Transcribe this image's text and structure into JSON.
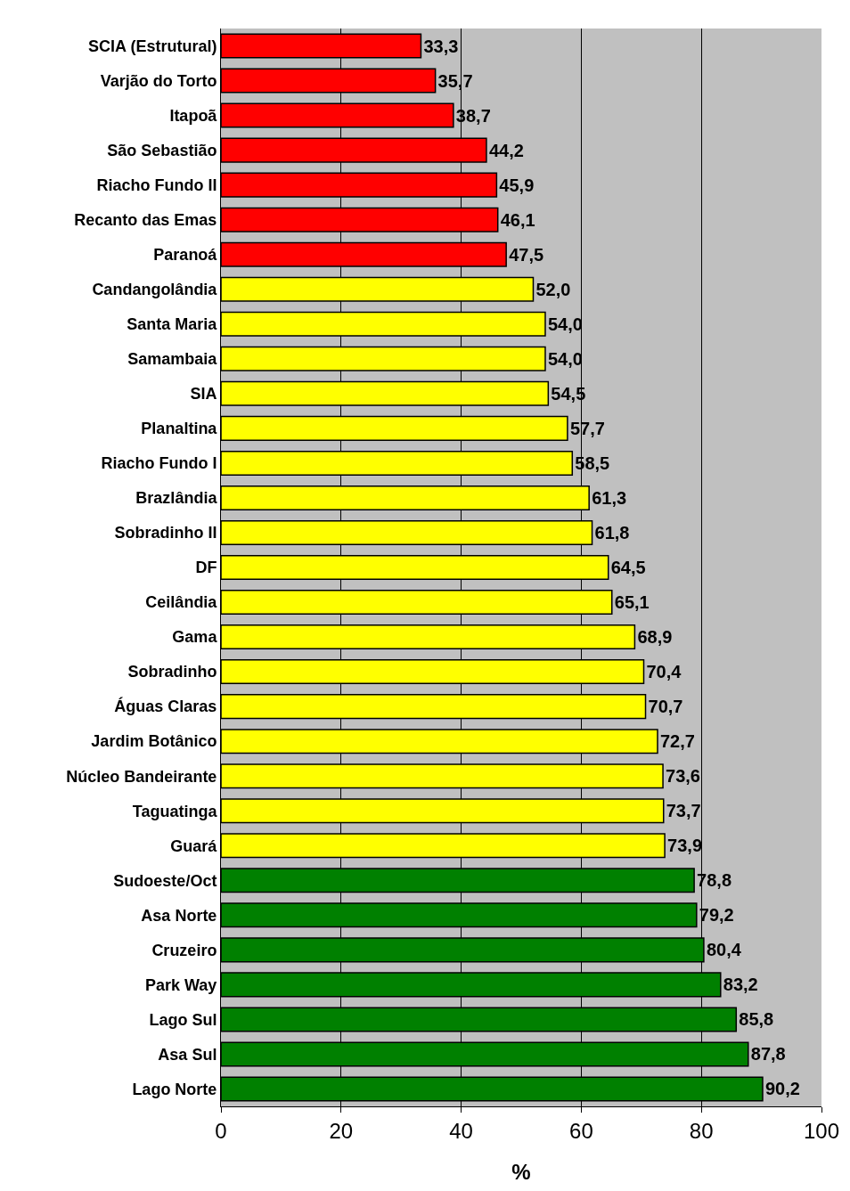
{
  "chart_data": {
    "type": "bar",
    "orientation": "horizontal",
    "xlabel": "%",
    "categories": [
      "SCIA (Estrutural)",
      "Varjão do Torto",
      "Itapoã",
      "São Sebastião",
      "Riacho Fundo II",
      "Recanto das Emas",
      "Paranoá",
      "Candangolândia",
      "Santa Maria",
      "Samambaia",
      "SIA",
      "Planaltina",
      "Riacho Fundo I",
      "Brazlândia",
      "Sobradinho II",
      "DF",
      "Ceilândia",
      "Gama",
      "Sobradinho",
      "Águas Claras",
      "Jardim Botânico",
      "Núcleo Bandeirante",
      "Taguatinga",
      "Guará",
      "Sudoeste/Oct",
      "Asa Norte",
      "Cruzeiro",
      "Park Way",
      "Lago Sul",
      "Asa Sul",
      "Lago Norte"
    ],
    "values": [
      33.3,
      35.7,
      38.7,
      44.2,
      45.9,
      46.1,
      47.5,
      52.0,
      54.0,
      54.0,
      54.5,
      57.7,
      58.5,
      61.3,
      61.8,
      64.5,
      65.1,
      68.9,
      70.4,
      70.7,
      72.7,
      73.6,
      73.7,
      73.9,
      78.8,
      79.2,
      80.4,
      83.2,
      85.8,
      87.8,
      90.2
    ],
    "value_labels": [
      "33,3",
      "35,7",
      "38,7",
      "44,2",
      "45,9",
      "46,1",
      "47,5",
      "52,0",
      "54,0",
      "54,0",
      "54,5",
      "57,7",
      "58,5",
      "61,3",
      "61,8",
      "64,5",
      "65,1",
      "68,9",
      "70,4",
      "70,7",
      "72,7",
      "73,6",
      "73,7",
      "73,9",
      "78,8",
      "79,2",
      "80,4",
      "83,2",
      "85,8",
      "87,8",
      "90,2"
    ],
    "colors": [
      "#ff0000",
      "#ff0000",
      "#ff0000",
      "#ff0000",
      "#ff0000",
      "#ff0000",
      "#ff0000",
      "#ffff00",
      "#ffff00",
      "#ffff00",
      "#ffff00",
      "#ffff00",
      "#ffff00",
      "#ffff00",
      "#ffff00",
      "#ffff00",
      "#ffff00",
      "#ffff00",
      "#ffff00",
      "#ffff00",
      "#ffff00",
      "#ffff00",
      "#ffff00",
      "#ffff00",
      "#008000",
      "#008000",
      "#008000",
      "#008000",
      "#008000",
      "#008000",
      "#008000"
    ],
    "xlim": [
      0,
      100
    ],
    "xticks": [
      0,
      20,
      40,
      60,
      80,
      100
    ],
    "grid": "x"
  }
}
